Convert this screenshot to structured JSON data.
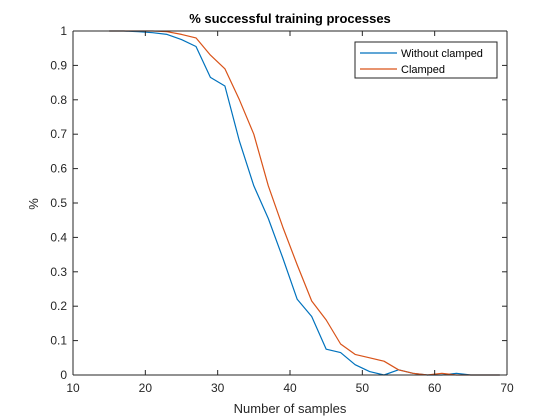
{
  "chart_data": {
    "type": "line",
    "title": "% successful training processes",
    "xlabel": "Number of samples",
    "ylabel": "%",
    "xlim": [
      10,
      70
    ],
    "ylim": [
      0,
      1
    ],
    "xticks": [
      10,
      20,
      30,
      40,
      50,
      60,
      70
    ],
    "yticks": [
      0,
      0.1,
      0.2,
      0.3,
      0.4,
      0.5,
      0.6,
      0.7,
      0.8,
      0.9,
      1
    ],
    "ytick_labels": [
      "0",
      "0.1",
      "0.2",
      "0.3",
      "0.4",
      "0.5",
      "0.6",
      "0.7",
      "0.8",
      "0.9",
      "1"
    ],
    "grid": false,
    "legend_position": "top-right",
    "series": [
      {
        "name": "Without clamped",
        "color": "#0072BD",
        "x": [
          15,
          17,
          19,
          21,
          23,
          25,
          27,
          29,
          31,
          33,
          35,
          37,
          39,
          41,
          43,
          45,
          47,
          49,
          51,
          53,
          55,
          57,
          59,
          61,
          63,
          65,
          67,
          69
        ],
        "y": [
          1.0,
          1.0,
          0.998,
          0.995,
          0.99,
          0.975,
          0.955,
          0.865,
          0.84,
          0.68,
          0.55,
          0.455,
          0.34,
          0.22,
          0.17,
          0.075,
          0.065,
          0.03,
          0.01,
          0.0,
          0.015,
          0.005,
          0.0,
          0.0,
          0.005,
          0.0,
          0.0,
          0.0
        ]
      },
      {
        "name": "Clamped",
        "color": "#D95319",
        "x": [
          15,
          17,
          19,
          21,
          23,
          25,
          27,
          29,
          31,
          33,
          35,
          37,
          39,
          41,
          43,
          45,
          47,
          49,
          51,
          53,
          55,
          57,
          59,
          61,
          63,
          65,
          67,
          69
        ],
        "y": [
          1.0,
          1.0,
          1.0,
          1.0,
          0.998,
          0.99,
          0.98,
          0.93,
          0.89,
          0.8,
          0.7,
          0.55,
          0.43,
          0.32,
          0.215,
          0.16,
          0.09,
          0.06,
          0.05,
          0.04,
          0.015,
          0.005,
          0.0,
          0.005,
          0.0,
          0.0,
          0.0,
          0.0
        ]
      }
    ]
  }
}
